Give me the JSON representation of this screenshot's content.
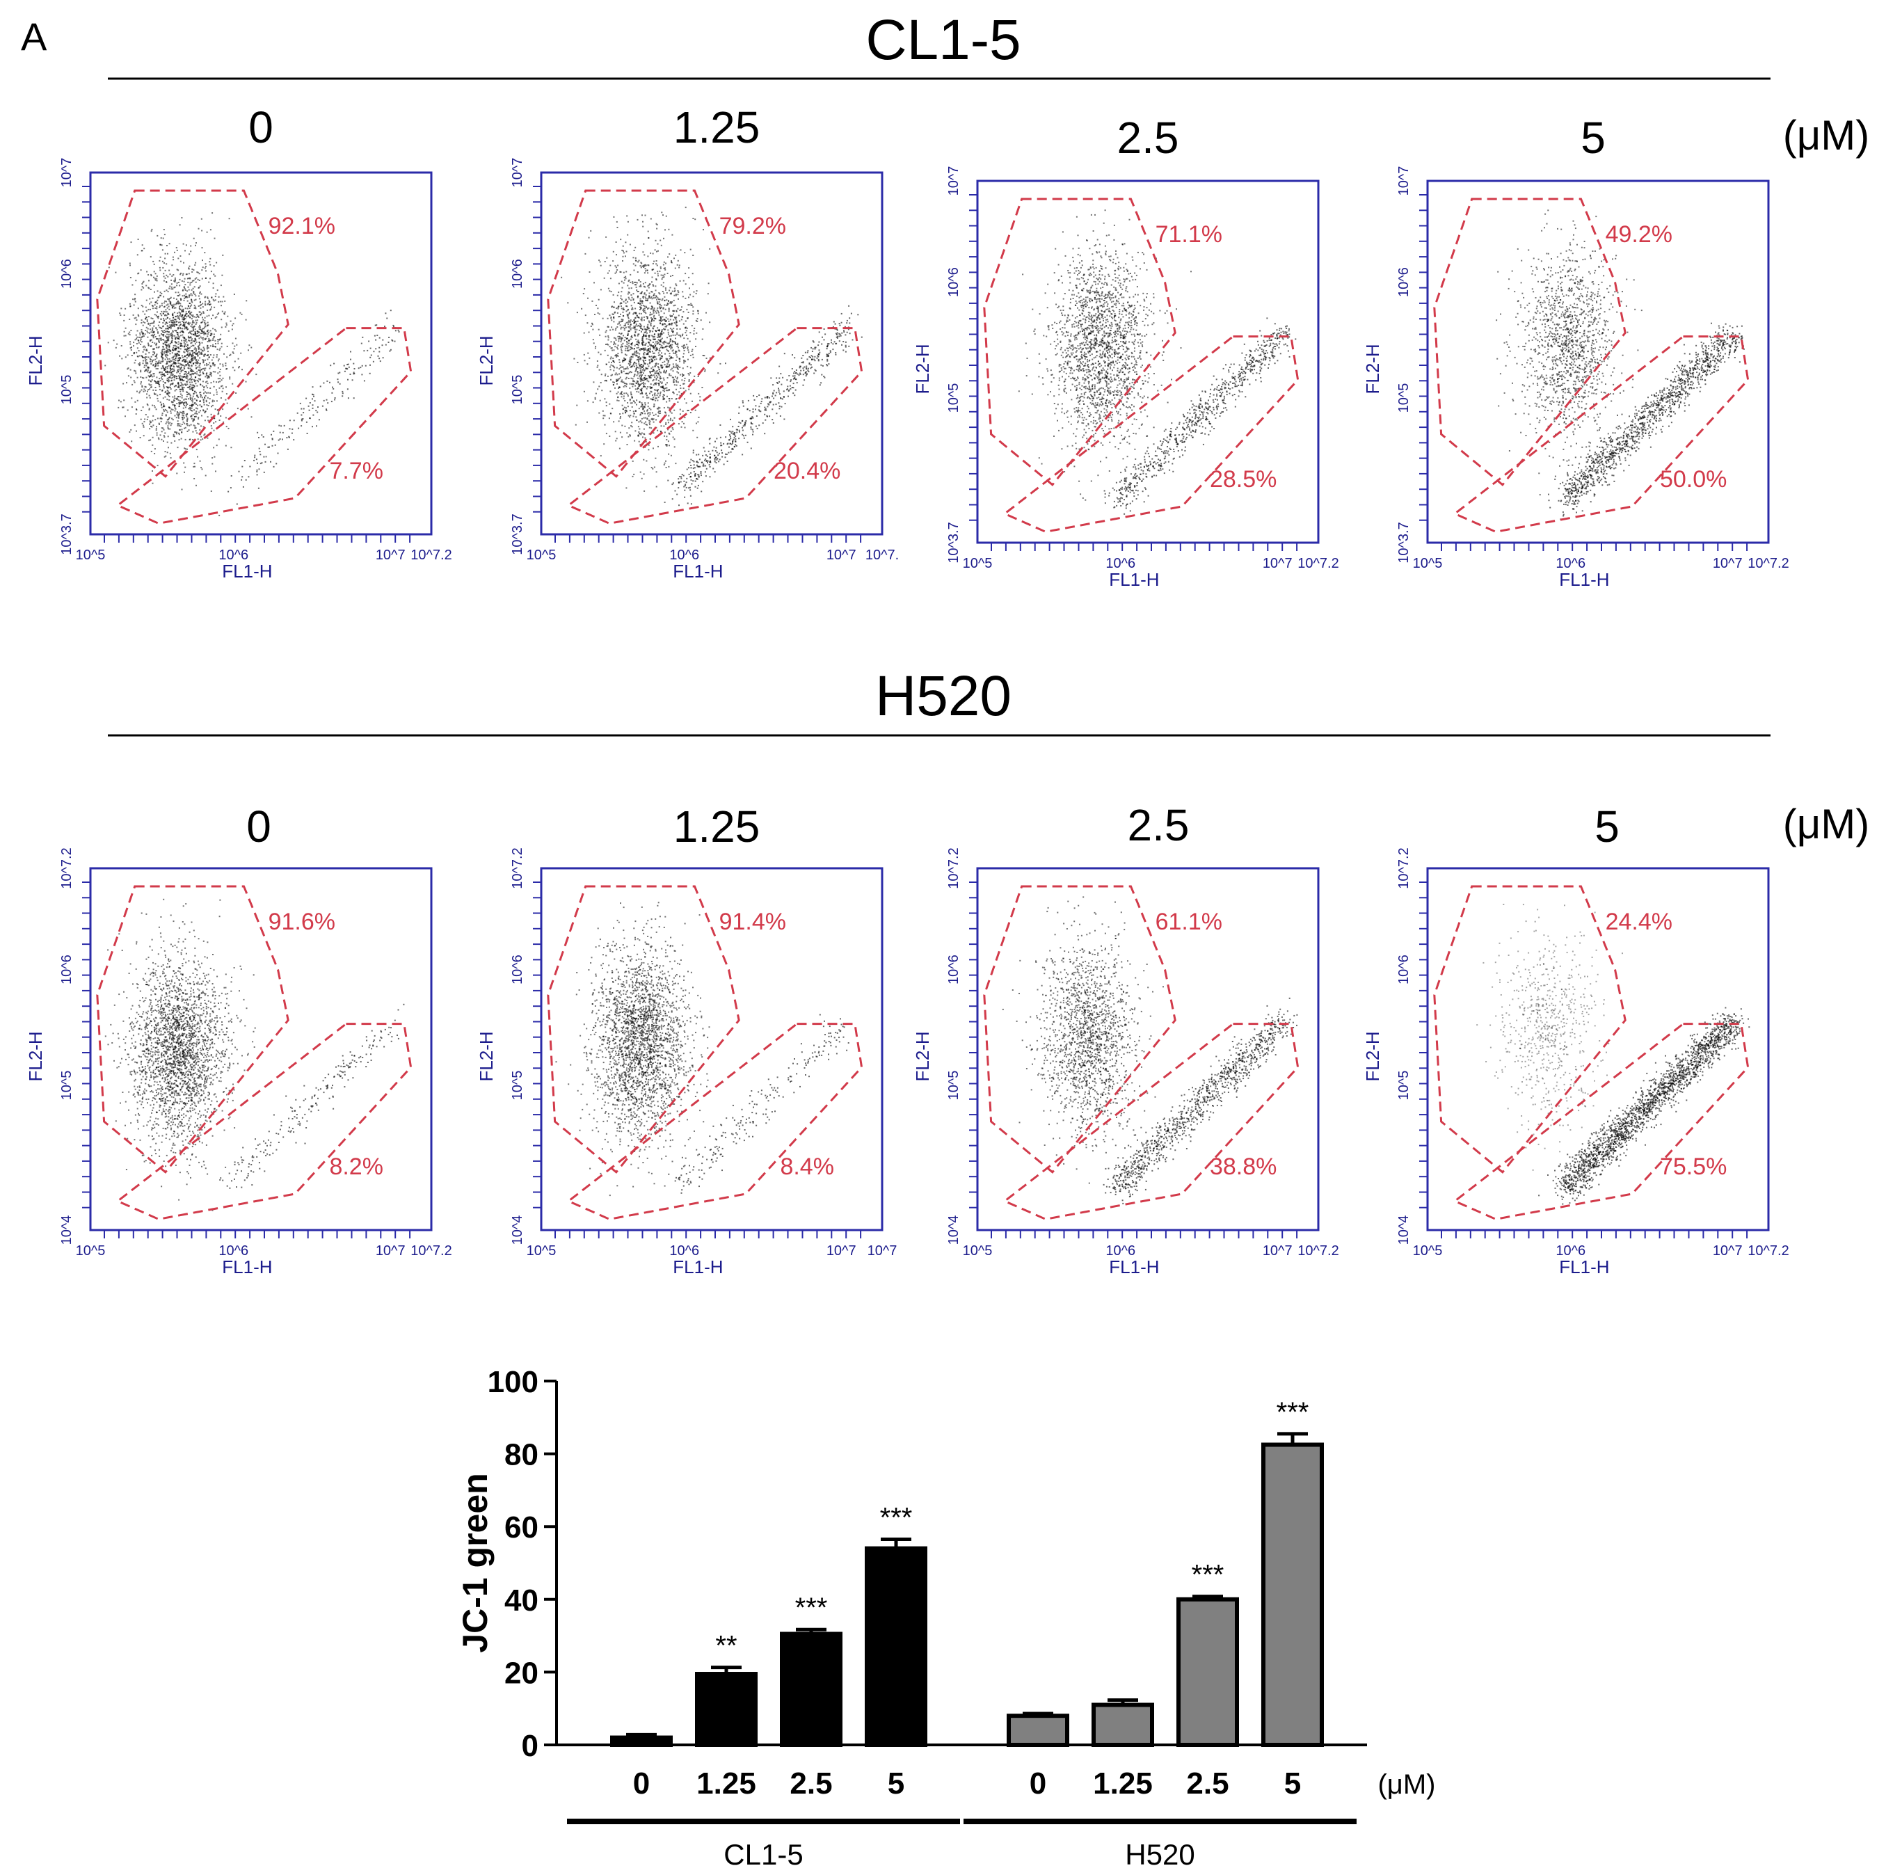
{
  "panel_label": "A",
  "colors": {
    "gate": "#d23a4a",
    "plot_frame": "#2b2ba8",
    "dots": "#000000",
    "cl15_bar": "#000000",
    "h520_bar": "#808080"
  },
  "flow_panels": [
    {
      "cell_line": "CL1-5",
      "unit": "(μM)",
      "concentrations": [
        "0",
        "1.25",
        "2.5",
        "5"
      ],
      "plots": [
        {
          "conc": "0",
          "upper_gate_pct": "92.1%",
          "lower_gate_pct": "7.7%",
          "x_axis_label": "FL1-H",
          "y_axis_label": "FL2-H",
          "x_ticks": [
            "10^5",
            "10^6",
            "10^7",
            "10^7.2"
          ],
          "y_ticks": [
            "10^3.7",
            "10^5",
            "10^6",
            "10^7"
          ]
        },
        {
          "conc": "1.25",
          "upper_gate_pct": "79.2%",
          "lower_gate_pct": "20.4%",
          "x_axis_label": "FL1-H",
          "y_axis_label": "FL2-H",
          "x_ticks": [
            "10^5",
            "10^6",
            "10^7",
            "10^7."
          ],
          "y_ticks": [
            "10^3.7",
            "10^5",
            "10^6",
            "10^7"
          ]
        },
        {
          "conc": "2.5",
          "upper_gate_pct": "71.1%",
          "lower_gate_pct": "28.5%",
          "x_axis_label": "FL1-H",
          "y_axis_label": "FL2-H",
          "x_ticks": [
            "10^5",
            "10^6",
            "10^7",
            "10^7.2"
          ],
          "y_ticks": [
            "10^3.7",
            "10^5",
            "10^6",
            "10^7"
          ]
        },
        {
          "conc": "5",
          "upper_gate_pct": "49.2%",
          "lower_gate_pct": "50.0%",
          "x_axis_label": "FL1-H",
          "y_axis_label": "FL2-H",
          "x_ticks": [
            "10^5",
            "10^6",
            "10^7",
            "10^7.2"
          ],
          "y_ticks": [
            "10^3.7",
            "10^5",
            "10^6",
            "10^7"
          ]
        }
      ]
    },
    {
      "cell_line": "H520",
      "unit": "(μM)",
      "concentrations": [
        "0",
        "1.25",
        "2.5",
        "5"
      ],
      "plots": [
        {
          "conc": "0",
          "upper_gate_pct": "91.6%",
          "lower_gate_pct": "8.2%",
          "x_axis_label": "FL1-H",
          "y_axis_label": "FL2-H",
          "x_ticks": [
            "10^5",
            "10^6",
            "10^7",
            "10^7.2"
          ],
          "y_ticks": [
            "10^4",
            "10^5",
            "10^6",
            "10^7.2"
          ]
        },
        {
          "conc": "1.25",
          "upper_gate_pct": "91.4%",
          "lower_gate_pct": "8.4%",
          "x_axis_label": "FL1-H",
          "y_axis_label": "FL2-H",
          "x_ticks": [
            "10^5",
            "10^6",
            "10^7",
            "10^7"
          ],
          "y_ticks": [
            "10^4",
            "10^5",
            "10^6",
            "10^7.2"
          ]
        },
        {
          "conc": "2.5",
          "upper_gate_pct": "61.1%",
          "lower_gate_pct": "38.8%",
          "x_axis_label": "FL1-H",
          "y_axis_label": "FL2-H",
          "x_ticks": [
            "10^5",
            "10^6",
            "10^7",
            "10^7.2"
          ],
          "y_ticks": [
            "10^4",
            "10^5",
            "10^6",
            "10^7.2"
          ]
        },
        {
          "conc": "5",
          "upper_gate_pct": "24.4%",
          "lower_gate_pct": "75.5%",
          "x_axis_label": "FL1-H",
          "y_axis_label": "FL2-H",
          "x_ticks": [
            "10^5",
            "10^6",
            "10^7",
            "10^7.2"
          ],
          "y_ticks": [
            "10^4",
            "10^5",
            "10^6",
            "10^7.2"
          ]
        }
      ]
    }
  ],
  "chart_data": {
    "type": "bar",
    "ylabel": "JC-1 green",
    "ylim": [
      0,
      100
    ],
    "yticks": [
      0,
      20,
      40,
      60,
      80,
      100
    ],
    "unit": "(μM)",
    "groups": [
      {
        "name": "CL1-5",
        "categories": [
          "0",
          "1.25",
          "2.5",
          "5"
        ],
        "values": [
          2,
          19.5,
          30.5,
          54
        ],
        "errors": [
          0.8,
          1.8,
          1.2,
          2.5
        ],
        "significance": [
          "",
          "**",
          "***",
          "***"
        ]
      },
      {
        "name": "H520",
        "categories": [
          "0",
          "1.25",
          "2.5",
          "5"
        ],
        "values": [
          8,
          11,
          40,
          82.5
        ],
        "errors": [
          0.6,
          1.3,
          0.8,
          3.0
        ],
        "significance": [
          "",
          "",
          "***",
          "***"
        ]
      }
    ]
  }
}
